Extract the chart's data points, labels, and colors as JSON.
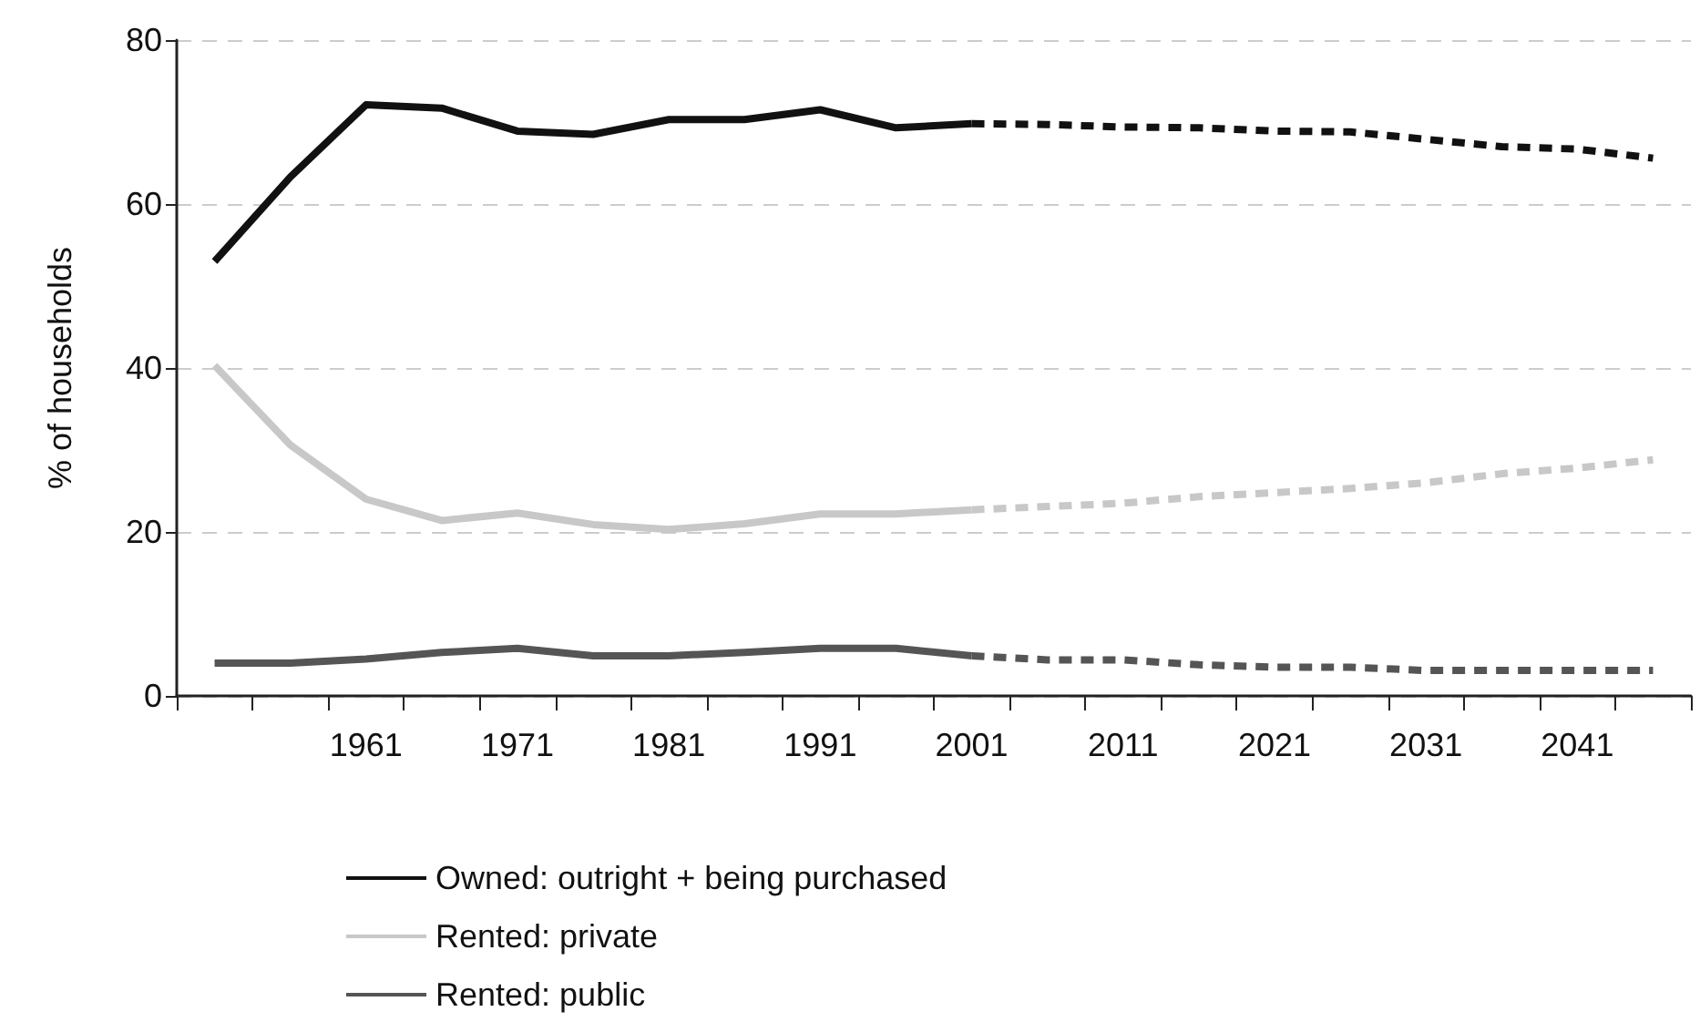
{
  "chart_data": {
    "type": "line",
    "ylabel": "% of households",
    "categories": [
      null,
      null,
      "1961",
      null,
      "1971",
      null,
      "1981",
      null,
      "1991",
      null,
      "2001",
      null,
      "2011",
      null,
      "2021",
      null,
      "2031",
      null,
      "2041",
      null
    ],
    "ylim": [
      0,
      80
    ],
    "yticks": [
      0,
      20,
      40,
      60,
      80
    ],
    "grid": "y",
    "legend": "bottom",
    "marker": "none",
    "series": [
      {
        "name": "Owned: outright + being purchased",
        "color": "#111111",
        "line_style": "solid",
        "values": [
          53,
          63.3,
          72.1,
          71.7,
          68.9,
          68.5,
          70.3,
          70.3,
          71.5,
          69.3,
          69.8,
          null,
          null,
          null,
          null,
          null,
          null,
          null,
          null,
          null
        ]
      },
      {
        "color": "#111111",
        "line_style": "dashed",
        "values": [
          null,
          null,
          null,
          null,
          null,
          null,
          null,
          null,
          null,
          null,
          69.8,
          69.7,
          69.4,
          69.3,
          68.9,
          68.8,
          67.9,
          67.0,
          66.7,
          65.6
        ]
      },
      {
        "name": "Rented: private",
        "color": "#c8c8c8",
        "line_style": "solid",
        "values": [
          40.3,
          30.6,
          24.0,
          21.4,
          22.3,
          20.9,
          20.3,
          21.0,
          22.2,
          22.2,
          22.7,
          null,
          null,
          null,
          null,
          null,
          null,
          null,
          null,
          null
        ]
      },
      {
        "color": "#c8c8c8",
        "line_style": "dashed",
        "values": [
          null,
          null,
          null,
          null,
          null,
          null,
          null,
          null,
          null,
          null,
          22.7,
          23.1,
          23.5,
          24.3,
          24.8,
          25.3,
          26.0,
          27.1,
          27.8,
          28.8
        ]
      },
      {
        "name": "Rented: public",
        "color": "#555555",
        "line_style": "solid",
        "values": [
          4.0,
          4.0,
          4.5,
          5.3,
          5.8,
          4.9,
          4.9,
          5.3,
          5.8,
          5.8,
          4.9,
          null,
          null,
          null,
          null,
          null,
          null,
          null,
          null,
          null
        ]
      },
      {
        "color": "#555555",
        "line_style": "dashed",
        "values": [
          null,
          null,
          null,
          null,
          null,
          null,
          null,
          null,
          null,
          null,
          4.9,
          4.4,
          4.4,
          3.8,
          3.5,
          3.5,
          3.1,
          3.1,
          3.1,
          3.1
        ]
      }
    ]
  }
}
